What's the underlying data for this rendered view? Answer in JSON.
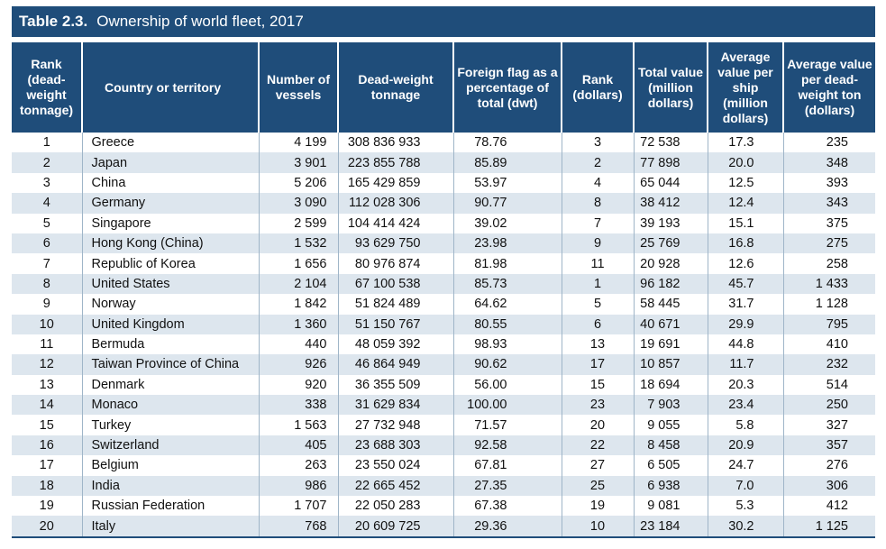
{
  "title": {
    "number": "Table 2.3.",
    "text": "Ownership of world fleet, 2017"
  },
  "columns": [
    "Rank (dead-weight tonnage)",
    "Country or territory",
    "Number of vessels",
    "Dead-weight tonnage",
    "Foreign flag as a percentage of total (dwt)",
    "Rank (dollars)",
    "Total value (million dollars)",
    "Average value per ship (million dollars)",
    "Average value per dead-weight ton (dollars)"
  ],
  "rows": [
    [
      "1",
      "Greece",
      "4 199",
      "308 836 933",
      "78.76",
      "3",
      "72 538",
      "17.3",
      "235"
    ],
    [
      "2",
      "Japan",
      "3 901",
      "223 855 788",
      "85.89",
      "2",
      "77 898",
      "20.0",
      "348"
    ],
    [
      "3",
      "China",
      "5 206",
      "165 429 859",
      "53.97",
      "4",
      "65 044",
      "12.5",
      "393"
    ],
    [
      "4",
      "Germany",
      "3 090",
      "112 028 306",
      "90.77",
      "8",
      "38 412",
      "12.4",
      "343"
    ],
    [
      "5",
      "Singapore",
      "2 599",
      "104 414 424",
      "39.02",
      "7",
      "39 193",
      "15.1",
      "375"
    ],
    [
      "6",
      "Hong Kong (China)",
      "1 532",
      "93 629 750",
      "23.98",
      "9",
      "25 769",
      "16.8",
      "275"
    ],
    [
      "7",
      "Republic of Korea",
      "1 656",
      "80 976 874",
      "81.98",
      "11",
      "20 928",
      "12.6",
      "258"
    ],
    [
      "8",
      "United States",
      "2 104",
      "67 100 538",
      "85.73",
      "1",
      "96 182",
      "45.7",
      "1 433"
    ],
    [
      "9",
      "Norway",
      "1 842",
      "51 824 489",
      "64.62",
      "5",
      "58 445",
      "31.7",
      "1 128"
    ],
    [
      "10",
      "United Kingdom",
      "1 360",
      "51 150 767",
      "80.55",
      "6",
      "40 671",
      "29.9",
      "795"
    ],
    [
      "11",
      "Bermuda",
      "440",
      "48 059 392",
      "98.93",
      "13",
      "19 691",
      "44.8",
      "410"
    ],
    [
      "12",
      "Taiwan Province of China",
      "926",
      "46 864 949",
      "90.62",
      "17",
      "10 857",
      "11.7",
      "232"
    ],
    [
      "13",
      "Denmark",
      "920",
      "36 355 509",
      "56.00",
      "15",
      "18 694",
      "20.3",
      "514"
    ],
    [
      "14",
      "Monaco",
      "338",
      "31 629 834",
      "100.00",
      "23",
      "7 903",
      "23.4",
      "250"
    ],
    [
      "15",
      "Turkey",
      "1 563",
      "27 732 948",
      "71.57",
      "20",
      "9 055",
      "5.8",
      "327"
    ],
    [
      "16",
      "Switzerland",
      "405",
      "23 688 303",
      "92.58",
      "22",
      "8 458",
      "20.9",
      "357"
    ],
    [
      "17",
      "Belgium",
      "263",
      "23 550 024",
      "67.81",
      "27",
      "6 505",
      "24.7",
      "276"
    ],
    [
      "18",
      "India",
      "986",
      "22 665 452",
      "27.35",
      "25",
      "6 938",
      "7.0",
      "306"
    ],
    [
      "19",
      "Russian Federation",
      "1 707",
      "22 050 283",
      "67.38",
      "19",
      "9 081",
      "5.3",
      "412"
    ],
    [
      "20",
      "Italy",
      "768",
      "20 609 725",
      "29.36",
      "10",
      "23 184",
      "30.2",
      "1 125"
    ]
  ],
  "colors": {
    "header_bg": "#1f4d7a",
    "stripe": "#dde6ee"
  }
}
